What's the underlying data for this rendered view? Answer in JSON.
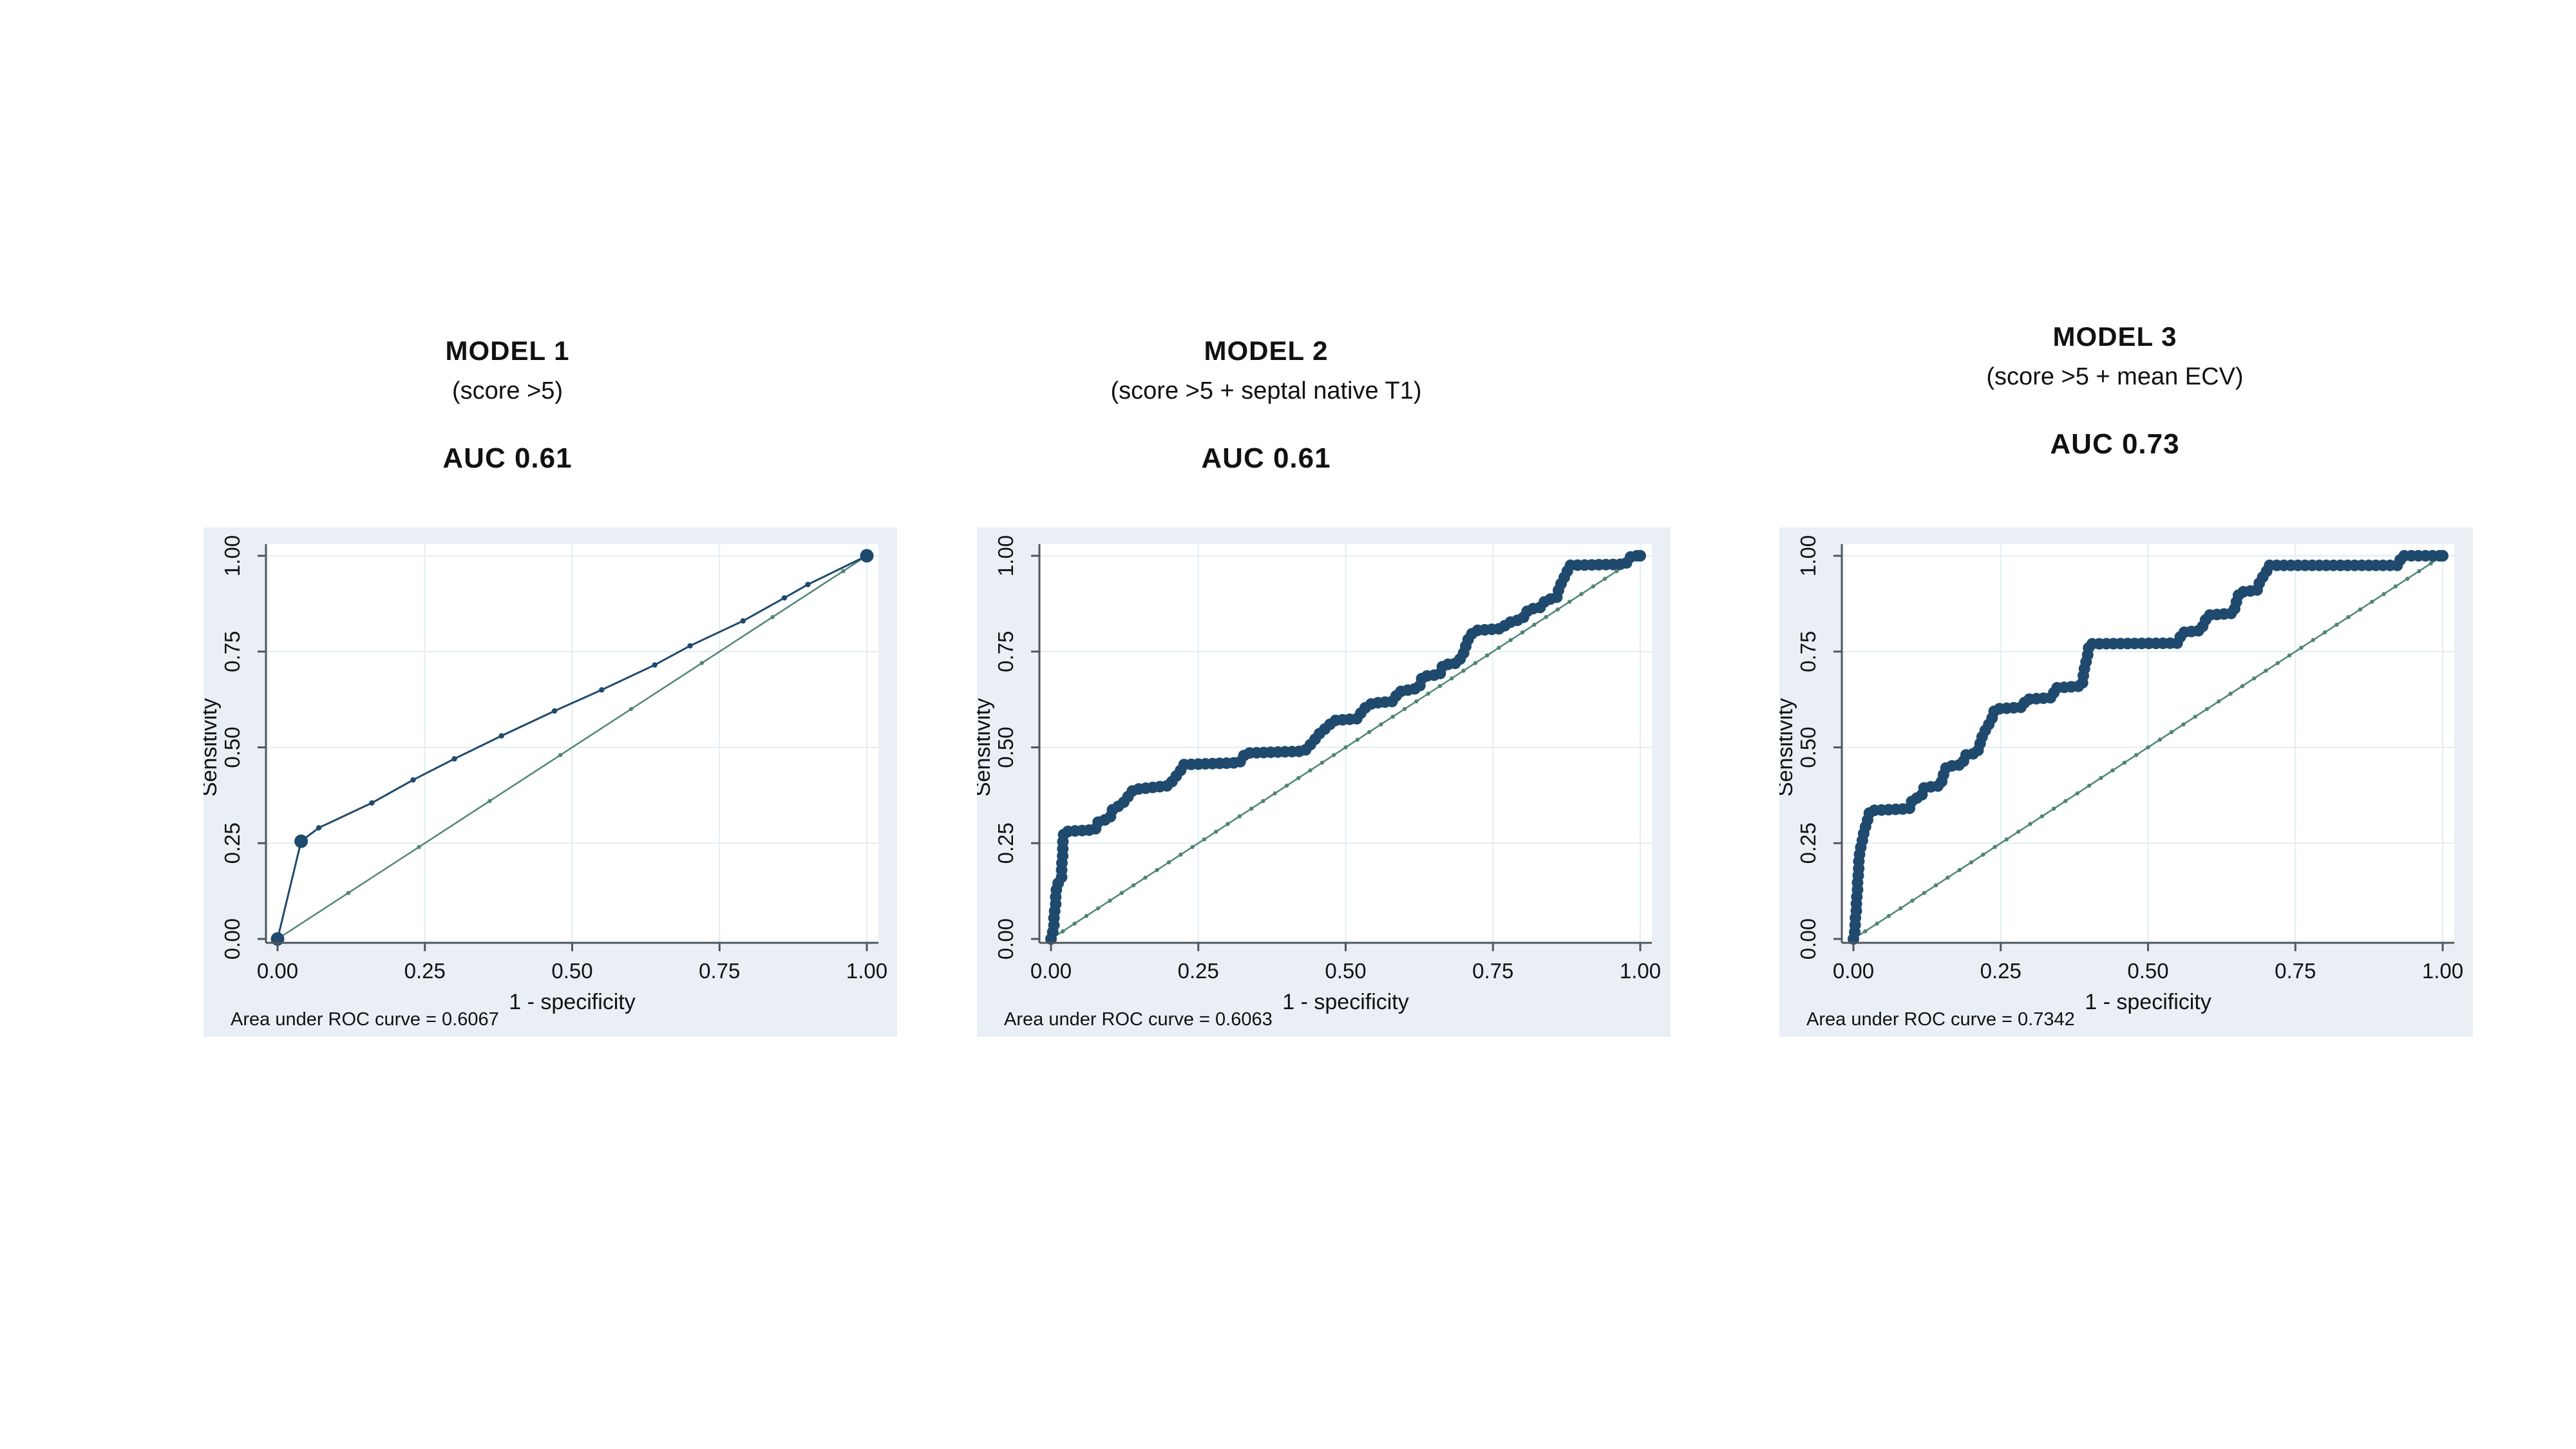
{
  "figure": {
    "background": "#ffffff",
    "panel_background": "#e9eff4",
    "axis_color": "#4d565e",
    "grid_color": "#e2edf2",
    "text_color": "#111111",
    "curve_color": "#1f4a6e",
    "reference_color": "#4f8577"
  },
  "chart_data": [
    {
      "type": "line",
      "title": "MODEL 1",
      "subtitle": "(score >5)",
      "auc_heading": "AUC 0.61",
      "footnote": "Area under ROC curve = 0.6067",
      "xlabel": "1 - specificity",
      "ylabel": "Sensitivity",
      "xlim": [
        0,
        1
      ],
      "ylim": [
        0,
        1
      ],
      "xticks": [
        0,
        0.25,
        0.5,
        0.75,
        1
      ],
      "yticks": [
        0,
        0.25,
        0.5,
        0.75,
        1
      ],
      "tick_labels": [
        "0.00",
        "0.25",
        "0.50",
        "0.75",
        "1.00"
      ],
      "grid": true,
      "series": [
        {
          "name": "ROC curve",
          "style": "line-markers",
          "color": "#1f4a6e",
          "points": [
            [
              0,
              0
            ],
            [
              0.04,
              0.255
            ],
            [
              0.07,
              0.29
            ],
            [
              0.16,
              0.355
            ],
            [
              0.23,
              0.415
            ],
            [
              0.3,
              0.47
            ],
            [
              0.38,
              0.53
            ],
            [
              0.47,
              0.595
            ],
            [
              0.55,
              0.65
            ],
            [
              0.64,
              0.715
            ],
            [
              0.7,
              0.765
            ],
            [
              0.79,
              0.83
            ],
            [
              0.86,
              0.89
            ],
            [
              0.9,
              0.925
            ],
            [
              1,
              1
            ]
          ],
          "emphasis_points": [
            [
              0,
              0
            ],
            [
              0.04,
              0.255
            ],
            [
              1,
              1
            ]
          ]
        },
        {
          "name": "Reference line",
          "style": "diagonal",
          "color": "#4f8577",
          "points": [
            [
              0,
              0
            ],
            [
              1,
              1
            ]
          ],
          "marker_step": 0.12
        }
      ]
    },
    {
      "type": "scatter",
      "title": "MODEL 2",
      "subtitle": "(score >5 + septal native T1)",
      "auc_heading": "AUC 0.61",
      "footnote": "Area under ROC curve = 0.6063",
      "xlabel": "1 - specificity",
      "ylabel": "Sensitivity",
      "xlim": [
        0,
        1
      ],
      "ylim": [
        0,
        1
      ],
      "xticks": [
        0,
        0.25,
        0.5,
        0.75,
        1
      ],
      "yticks": [
        0,
        0.25,
        0.5,
        0.75,
        1
      ],
      "tick_labels": [
        "0.00",
        "0.25",
        "0.50",
        "0.75",
        "1.00"
      ],
      "grid": true,
      "series": [
        {
          "name": "ROC curve",
          "style": "step-dots",
          "color": "#1f4a6e",
          "points": [
            [
              0,
              0
            ],
            [
              0.005,
              0.03
            ],
            [
              0.005,
              0.06
            ],
            [
              0.008,
              0.09
            ],
            [
              0.008,
              0.115
            ],
            [
              0.01,
              0.14
            ],
            [
              0.018,
              0.16
            ],
            [
              0.018,
              0.19
            ],
            [
              0.02,
              0.22
            ],
            [
              0.02,
              0.25
            ],
            [
              0.022,
              0.28
            ],
            [
              0.075,
              0.285
            ],
            [
              0.08,
              0.305
            ],
            [
              0.1,
              0.315
            ],
            [
              0.105,
              0.34
            ],
            [
              0.12,
              0.35
            ],
            [
              0.13,
              0.37
            ],
            [
              0.14,
              0.39
            ],
            [
              0.2,
              0.4
            ],
            [
              0.21,
              0.42
            ],
            [
              0.22,
              0.44
            ],
            [
              0.225,
              0.455
            ],
            [
              0.32,
              0.46
            ],
            [
              0.33,
              0.485
            ],
            [
              0.43,
              0.49
            ],
            [
              0.445,
              0.515
            ],
            [
              0.455,
              0.535
            ],
            [
              0.47,
              0.555
            ],
            [
              0.48,
              0.57
            ],
            [
              0.52,
              0.575
            ],
            [
              0.53,
              0.6
            ],
            [
              0.545,
              0.615
            ],
            [
              0.58,
              0.62
            ],
            [
              0.59,
              0.645
            ],
            [
              0.625,
              0.655
            ],
            [
              0.63,
              0.685
            ],
            [
              0.66,
              0.69
            ],
            [
              0.665,
              0.715
            ],
            [
              0.69,
              0.72
            ],
            [
              0.7,
              0.745
            ],
            [
              0.705,
              0.77
            ],
            [
              0.71,
              0.79
            ],
            [
              0.72,
              0.805
            ],
            [
              0.765,
              0.81
            ],
            [
              0.775,
              0.825
            ],
            [
              0.8,
              0.835
            ],
            [
              0.81,
              0.86
            ],
            [
              0.83,
              0.865
            ],
            [
              0.84,
              0.885
            ],
            [
              0.858,
              0.89
            ],
            [
              0.862,
              0.915
            ],
            [
              0.868,
              0.935
            ],
            [
              0.875,
              0.955
            ],
            [
              0.88,
              0.975
            ],
            [
              0.975,
              0.978
            ],
            [
              0.985,
              1.0
            ],
            [
              1,
              1
            ]
          ]
        },
        {
          "name": "Reference line",
          "style": "diagonal",
          "color": "#4f8577",
          "points": [
            [
              0,
              0
            ],
            [
              1,
              1
            ]
          ],
          "marker_step": 0.02
        }
      ]
    },
    {
      "type": "scatter",
      "title": "MODEL 3",
      "subtitle": "(score >5 + mean ECV)",
      "auc_heading": "AUC 0.73",
      "footnote": "Area under ROC curve = 0.7342",
      "xlabel": "1 - specificity",
      "ylabel": "Sensitivity",
      "xlim": [
        0,
        1
      ],
      "ylim": [
        0,
        1
      ],
      "xticks": [
        0,
        0.25,
        0.5,
        0.75,
        1
      ],
      "yticks": [
        0,
        0.25,
        0.5,
        0.75,
        1
      ],
      "tick_labels": [
        "0.00",
        "0.25",
        "0.50",
        "0.75",
        "1.00"
      ],
      "grid": true,
      "series": [
        {
          "name": "ROC curve",
          "style": "step-dots",
          "color": "#1f4a6e",
          "points": [
            [
              0,
              0
            ],
            [
              0.003,
              0.025
            ],
            [
              0.003,
              0.05
            ],
            [
              0.005,
              0.075
            ],
            [
              0.005,
              0.1
            ],
            [
              0.007,
              0.125
            ],
            [
              0.007,
              0.15
            ],
            [
              0.009,
              0.175
            ],
            [
              0.009,
              0.2
            ],
            [
              0.011,
              0.23
            ],
            [
              0.015,
              0.255
            ],
            [
              0.018,
              0.28
            ],
            [
              0.024,
              0.31
            ],
            [
              0.028,
              0.335
            ],
            [
              0.095,
              0.34
            ],
            [
              0.1,
              0.365
            ],
            [
              0.115,
              0.37
            ],
            [
              0.12,
              0.395
            ],
            [
              0.148,
              0.4
            ],
            [
              0.152,
              0.425
            ],
            [
              0.158,
              0.45
            ],
            [
              0.185,
              0.455
            ],
            [
              0.19,
              0.48
            ],
            [
              0.21,
              0.485
            ],
            [
              0.215,
              0.51
            ],
            [
              0.22,
              0.535
            ],
            [
              0.228,
              0.555
            ],
            [
              0.235,
              0.575
            ],
            [
              0.24,
              0.6
            ],
            [
              0.288,
              0.605
            ],
            [
              0.292,
              0.625
            ],
            [
              0.338,
              0.63
            ],
            [
              0.342,
              0.655
            ],
            [
              0.388,
              0.66
            ],
            [
              0.39,
              0.685
            ],
            [
              0.392,
              0.705
            ],
            [
              0.395,
              0.725
            ],
            [
              0.398,
              0.745
            ],
            [
              0.4,
              0.77
            ],
            [
              0.55,
              0.772
            ],
            [
              0.558,
              0.8
            ],
            [
              0.59,
              0.805
            ],
            [
              0.595,
              0.825
            ],
            [
              0.602,
              0.845
            ],
            [
              0.645,
              0.85
            ],
            [
              0.65,
              0.88
            ],
            [
              0.655,
              0.905
            ],
            [
              0.685,
              0.91
            ],
            [
              0.69,
              0.935
            ],
            [
              0.7,
              0.955
            ],
            [
              0.705,
              0.975
            ],
            [
              0.925,
              0.975
            ],
            [
              0.93,
              1.0
            ],
            [
              1,
              1
            ]
          ]
        },
        {
          "name": "Reference line",
          "style": "diagonal",
          "color": "#4f8577",
          "points": [
            [
              0,
              0
            ],
            [
              1,
              1
            ]
          ],
          "marker_step": 0.02
        }
      ]
    }
  ]
}
